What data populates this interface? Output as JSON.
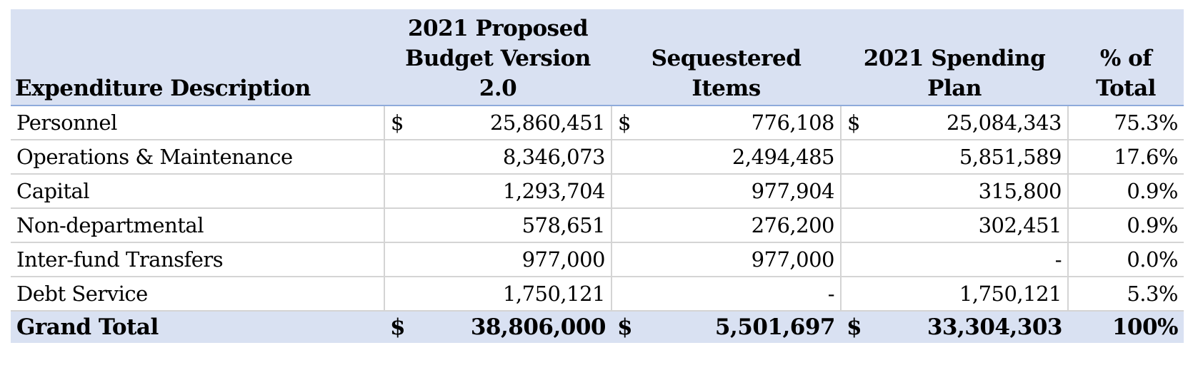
{
  "table": {
    "headers": [
      "Expenditure Description",
      "2021 Proposed Budget Version 2.0",
      "Sequestered Items",
      "2021 Spending Plan",
      "% of Total"
    ],
    "currency_symbol": "$",
    "rows": [
      {
        "description": "Personnel",
        "proposed": "25,860,451",
        "sequestered": "776,108",
        "spending": "25,084,343",
        "percent": "75.3%"
      },
      {
        "description": "Operations & Maintenance",
        "proposed": "8,346,073",
        "sequestered": "2,494,485",
        "spending": "5,851,589",
        "percent": "17.6%"
      },
      {
        "description": "Capital",
        "proposed": "1,293,704",
        "sequestered": "977,904",
        "spending": "315,800",
        "percent": "0.9%"
      },
      {
        "description": "Non-departmental",
        "proposed": "578,651",
        "sequestered": "276,200",
        "spending": "302,451",
        "percent": "0.9%"
      },
      {
        "description": "Inter-fund Transfers",
        "proposed": "977,000",
        "sequestered": "977,000",
        "spending": "-",
        "percent": "0.0%"
      },
      {
        "description": "Debt Service",
        "proposed": "1,750,121",
        "sequestered": "-",
        "spending": "1,750,121",
        "percent": "5.3%"
      }
    ],
    "total": {
      "description": "Grand Total",
      "proposed": "38,806,000",
      "sequestered": "5,501,697",
      "spending": "33,304,303",
      "percent": "100%"
    }
  },
  "colors": {
    "header_bg": "#d9e1f2",
    "accent_border": "#8eaadb",
    "grid": "#d4d4d4"
  }
}
